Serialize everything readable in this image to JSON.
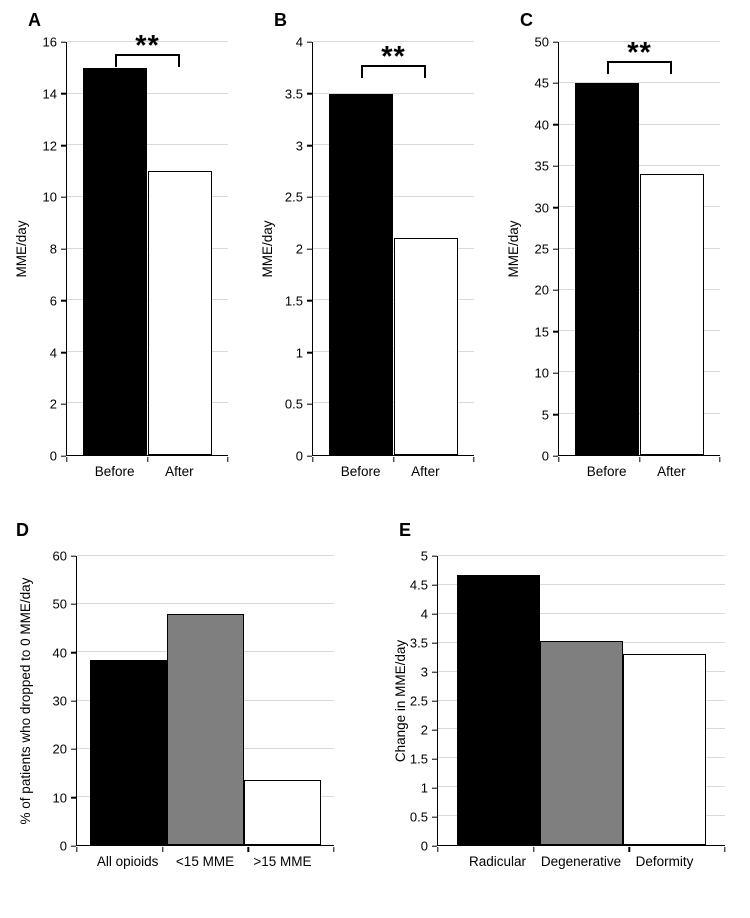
{
  "figure": {
    "background": "#ffffff",
    "bar_outline_color": "#000000",
    "gridline_color": "#d9d9d9"
  },
  "chart_data": [
    {
      "panel_label": "A",
      "type": "bar",
      "categories": [
        "Before",
        "After"
      ],
      "values": [
        15,
        11
      ],
      "bar_colors": [
        "#000000",
        "#ffffff"
      ],
      "title": "",
      "xlabel": "",
      "ylabel": "MME/day",
      "ylim": [
        0,
        16
      ],
      "yticks": [
        0,
        2,
        4,
        6,
        8,
        10,
        12,
        14,
        16
      ],
      "grid": true,
      "legend": false,
      "significance": "**"
    },
    {
      "panel_label": "B",
      "type": "bar",
      "categories": [
        "Before",
        "After"
      ],
      "values": [
        3.5,
        2.1
      ],
      "bar_colors": [
        "#000000",
        "#ffffff"
      ],
      "title": "",
      "xlabel": "",
      "ylabel": "MME/day",
      "ylim": [
        0,
        4
      ],
      "yticks": [
        0,
        0.5,
        1,
        1.5,
        2,
        2.5,
        3,
        3.5,
        4
      ],
      "grid": true,
      "legend": false,
      "significance": "**"
    },
    {
      "panel_label": "C",
      "type": "bar",
      "categories": [
        "Before",
        "After"
      ],
      "values": [
        45,
        34
      ],
      "bar_colors": [
        "#000000",
        "#ffffff"
      ],
      "title": "",
      "xlabel": "",
      "ylabel": "MME/day",
      "ylim": [
        0,
        50
      ],
      "yticks": [
        0,
        5,
        10,
        15,
        20,
        25,
        30,
        35,
        40,
        45,
        50
      ],
      "grid": true,
      "legend": false,
      "significance": "**"
    },
    {
      "panel_label": "D",
      "type": "bar",
      "categories": [
        "All opioids",
        "<15 MME",
        ">15 MME"
      ],
      "values": [
        38.5,
        48,
        13.5
      ],
      "bar_colors": [
        "#000000",
        "#7f7f7f",
        "#ffffff"
      ],
      "title": "",
      "xlabel": "",
      "ylabel": "% of patients who dropped to 0 MME/day",
      "ylim": [
        0,
        60
      ],
      "yticks": [
        0,
        10,
        20,
        30,
        40,
        50,
        60
      ],
      "grid": true,
      "legend": false,
      "significance": null
    },
    {
      "panel_label": "E",
      "type": "bar",
      "categories": [
        "Radicular",
        "Degenerative",
        "Deformity"
      ],
      "values": [
        4.68,
        3.53,
        3.3
      ],
      "bar_colors": [
        "#000000",
        "#7f7f7f",
        "#ffffff"
      ],
      "title": "",
      "xlabel": "",
      "ylabel": "Change in MME/day",
      "ylim": [
        0,
        5
      ],
      "yticks": [
        0,
        0.5,
        1,
        1.5,
        2,
        2.5,
        3,
        3.5,
        4,
        4.5,
        5
      ],
      "grid": true,
      "legend": false,
      "significance": null
    }
  ]
}
